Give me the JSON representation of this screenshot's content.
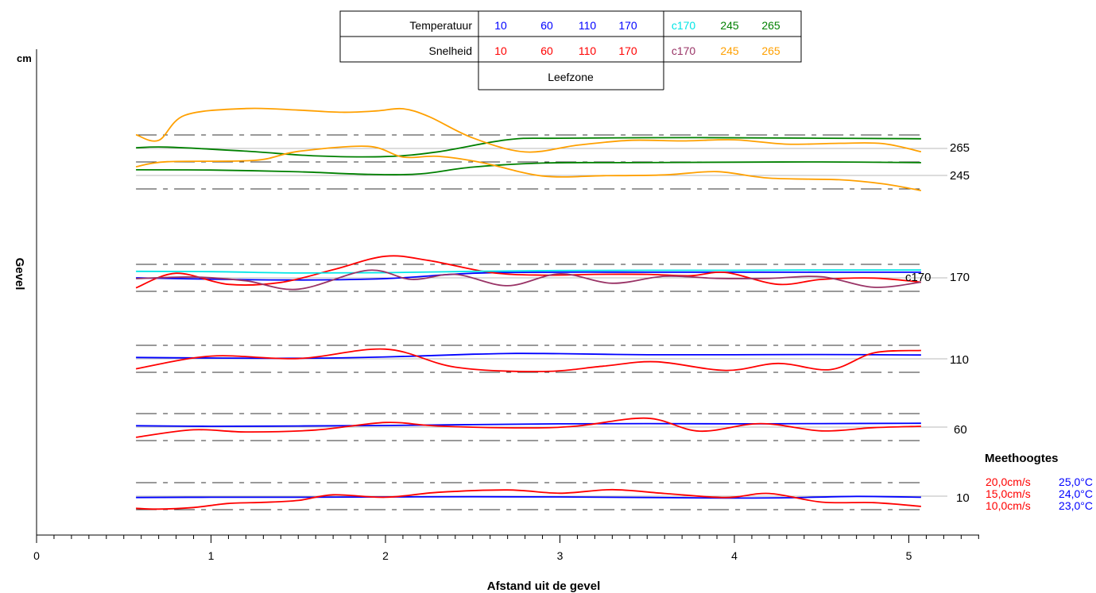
{
  "chart_data": {
    "type": "line",
    "y_axis_unit": "cm",
    "y_axis_side_label": "Gevel",
    "xlabel": "Afstand uit de gevel",
    "xlim": [
      0,
      5.4
    ],
    "x_ticks": [
      "0",
      "1",
      "2",
      "3",
      "4",
      "5"
    ],
    "legend_table": {
      "row_labels": [
        "Temperatuur",
        "Snelheid"
      ],
      "temperature_row": [
        {
          "text": "10",
          "color": "#0000ff"
        },
        {
          "text": "60",
          "color": "#0000ff"
        },
        {
          "text": "110",
          "color": "#0000ff"
        },
        {
          "text": "170",
          "color": "#0000ff"
        },
        {
          "text": "c170",
          "color": "#00e5e5"
        },
        {
          "text": "245",
          "color": "#008000"
        },
        {
          "text": "265",
          "color": "#008000"
        }
      ],
      "speed_row": [
        {
          "text": "10",
          "color": "#ff0000"
        },
        {
          "text": "60",
          "color": "#ff0000"
        },
        {
          "text": "110",
          "color": "#ff0000"
        },
        {
          "text": "170",
          "color": "#ff0000"
        },
        {
          "text": "c170",
          "color": "#993366"
        },
        {
          "text": "245",
          "color": "#ffa000"
        },
        {
          "text": "265",
          "color": "#ffa000"
        }
      ],
      "zone_label": "Leefzone"
    },
    "height_labels": [
      "265",
      "245",
      "c170",
      "170",
      "110",
      "60",
      "10"
    ],
    "scale_legend": {
      "title": "Meethoogtes",
      "rows": [
        {
          "speed": "20,0cm/s",
          "temp": "25,0°C"
        },
        {
          "speed": "15,0cm/s",
          "temp": "24,0°C"
        },
        {
          "speed": "10,0cm/s",
          "temp": "23,0°C"
        }
      ]
    },
    "colors": {
      "temperature": "#0000ff",
      "speed": "#ff0000",
      "c170_temperature": "#00e5e5",
      "c170_speed": "#993366",
      "high_temperature": "#008000",
      "high_speed": "#ffa000"
    },
    "series": [
      {
        "height": 10,
        "quantity": "temperature",
        "color": "#0000ff",
        "x": [
          0.57,
          1.0,
          1.5,
          2.0,
          2.5,
          3.0,
          3.5,
          3.95,
          4.3,
          4.7,
          5.07
        ],
        "y": [
          23.9,
          23.92,
          23.92,
          23.94,
          23.96,
          23.94,
          23.9,
          23.86,
          23.88,
          23.98,
          23.92
        ]
      },
      {
        "height": 10,
        "quantity": "speed",
        "color": "#ff0000",
        "x": [
          0.57,
          0.7,
          0.9,
          1.1,
          1.3,
          1.5,
          1.7,
          2.0,
          2.3,
          2.7,
          3.0,
          3.3,
          3.6,
          3.95,
          4.2,
          4.5,
          4.8,
          5.07
        ],
        "y": [
          10.5,
          10.2,
          10.8,
          12.3,
          12.7,
          13.4,
          15.5,
          14.6,
          16.4,
          17.3,
          16.1,
          17.4,
          16.0,
          14.5,
          16.0,
          12.8,
          12.6,
          11.2
        ]
      },
      {
        "height": 60,
        "quantity": "temperature",
        "color": "#0000ff",
        "x": [
          0.57,
          1.0,
          1.5,
          2.0,
          2.5,
          3.0,
          3.5,
          4.0,
          4.5,
          5.07
        ],
        "y": [
          24.1,
          24.06,
          24.08,
          24.12,
          24.18,
          24.24,
          24.26,
          24.24,
          24.26,
          24.28
        ]
      },
      {
        "height": 60,
        "quantity": "speed",
        "color": "#ff0000",
        "x": [
          0.57,
          0.9,
          1.2,
          1.6,
          2.0,
          2.3,
          2.8,
          3.1,
          3.5,
          3.8,
          4.15,
          4.5,
          4.8,
          5.07
        ],
        "y": [
          11.2,
          14.0,
          13.2,
          13.9,
          16.7,
          15.4,
          14.7,
          15.4,
          18.3,
          13.5,
          16.3,
          13.6,
          14.8,
          15.3
        ]
      },
      {
        "height": 110,
        "quantity": "temperature",
        "color": "#0000ff",
        "x": [
          0.57,
          1.0,
          1.5,
          2.0,
          2.5,
          2.75,
          3.0,
          3.5,
          4.0,
          4.5,
          5.07
        ],
        "y": [
          24.1,
          24.06,
          24.04,
          24.14,
          24.34,
          24.4,
          24.38,
          24.3,
          24.3,
          24.32,
          24.28
        ]
      },
      {
        "height": 110,
        "quantity": "speed",
        "color": "#ff0000",
        "x": [
          0.57,
          1.0,
          1.5,
          2.0,
          2.4,
          2.9,
          3.25,
          3.55,
          3.95,
          4.25,
          4.55,
          4.8,
          5.07
        ],
        "y": [
          11.3,
          16.0,
          15.1,
          18.6,
          11.9,
          10.3,
          12.3,
          13.9,
          10.7,
          13.3,
          11.0,
          17.2,
          18.1
        ]
      },
      {
        "height": 170,
        "quantity": "temperature",
        "color": "#0000ff",
        "x": [
          0.57,
          1.0,
          1.5,
          2.0,
          2.5,
          3.0,
          3.5,
          4.0,
          4.5,
          5.07
        ],
        "y": [
          24.0,
          23.9,
          23.84,
          23.94,
          24.34,
          24.42,
          24.42,
          24.42,
          24.42,
          24.42
        ]
      },
      {
        "height": 170,
        "quantity": "speed",
        "color": "#ff0000",
        "x": [
          0.57,
          0.8,
          1.1,
          1.4,
          1.7,
          2.0,
          2.25,
          2.6,
          2.9,
          3.2,
          3.5,
          3.75,
          3.95,
          4.25,
          4.5,
          4.8,
          5.07
        ],
        "y": [
          11.3,
          16.7,
          12.6,
          13.3,
          18.0,
          23.0,
          21.4,
          17.0,
          16.0,
          16.3,
          16.3,
          15.8,
          17.0,
          12.6,
          14.4,
          14.9,
          13.4
        ]
      },
      {
        "height": 170,
        "quantity": "c170 temperature",
        "color": "#00e5e5",
        "x": [
          0.57,
          1.0,
          1.5,
          2.0,
          2.5,
          3.0,
          3.5,
          4.0,
          4.5,
          5.07
        ],
        "y": [
          24.48,
          24.46,
          24.36,
          24.38,
          24.48,
          24.54,
          24.56,
          24.56,
          24.58,
          24.58
        ]
      },
      {
        "height": 170,
        "quantity": "c170 speed",
        "color": "#993366",
        "x": [
          0.57,
          0.9,
          1.2,
          1.5,
          1.9,
          2.15,
          2.4,
          2.7,
          3.0,
          3.3,
          3.6,
          3.9,
          4.2,
          4.5,
          4.8,
          5.07
        ],
        "y": [
          14.7,
          15.3,
          13.9,
          10.8,
          17.8,
          14.4,
          16.3,
          12.1,
          16.5,
          13.0,
          15.6,
          14.8,
          14.8,
          15.4,
          11.5,
          13.4
        ]
      },
      {
        "height": 245,
        "quantity": "temperature",
        "color": "#008000",
        "x": [
          0.57,
          1.0,
          1.5,
          1.9,
          2.2,
          2.5,
          2.9,
          3.4,
          4.0,
          4.5,
          5.07
        ],
        "y": [
          24.42,
          24.4,
          24.27,
          24.08,
          24.12,
          24.62,
          24.92,
          24.95,
          24.98,
          25.0,
          24.95
        ]
      },
      {
        "height": 265,
        "quantity": "temperature",
        "color": "#008000",
        "x": [
          0.57,
          0.75,
          1.2,
          1.6,
          2.0,
          2.3,
          2.7,
          3.0,
          3.8,
          4.5,
          5.07
        ],
        "y": [
          24.05,
          24.1,
          23.8,
          23.45,
          23.4,
          23.75,
          24.65,
          24.76,
          24.8,
          24.76,
          24.72
        ]
      },
      {
        "height": 245,
        "quantity": "speed",
        "color": "#ffa000",
        "x": [
          0.57,
          0.75,
          1.25,
          1.5,
          1.9,
          2.1,
          2.3,
          2.55,
          2.9,
          3.25,
          3.6,
          3.9,
          4.2,
          4.6,
          4.85,
          5.07
        ],
        "y": [
          18.2,
          20.1,
          20.6,
          23.9,
          25.8,
          21.8,
          22.1,
          19.8,
          14.8,
          14.9,
          15.2,
          16.4,
          14.0,
          13.4,
          11.9,
          9.4
        ]
      },
      {
        "height": 265,
        "quantity": "speed",
        "color": "#ffa000",
        "x": [
          0.57,
          0.7,
          0.85,
          1.2,
          1.5,
          1.75,
          1.95,
          2.1,
          2.25,
          2.5,
          2.8,
          3.1,
          3.4,
          3.7,
          4.0,
          4.3,
          4.6,
          4.85,
          5.07
        ],
        "y": [
          20.1,
          18.0,
          27.3,
          29.8,
          29.2,
          28.4,
          28.9,
          29.7,
          26.8,
          18.9,
          13.7,
          16.2,
          18.0,
          17.8,
          18.2,
          16.6,
          16.9,
          16.8,
          13.8
        ]
      }
    ]
  }
}
